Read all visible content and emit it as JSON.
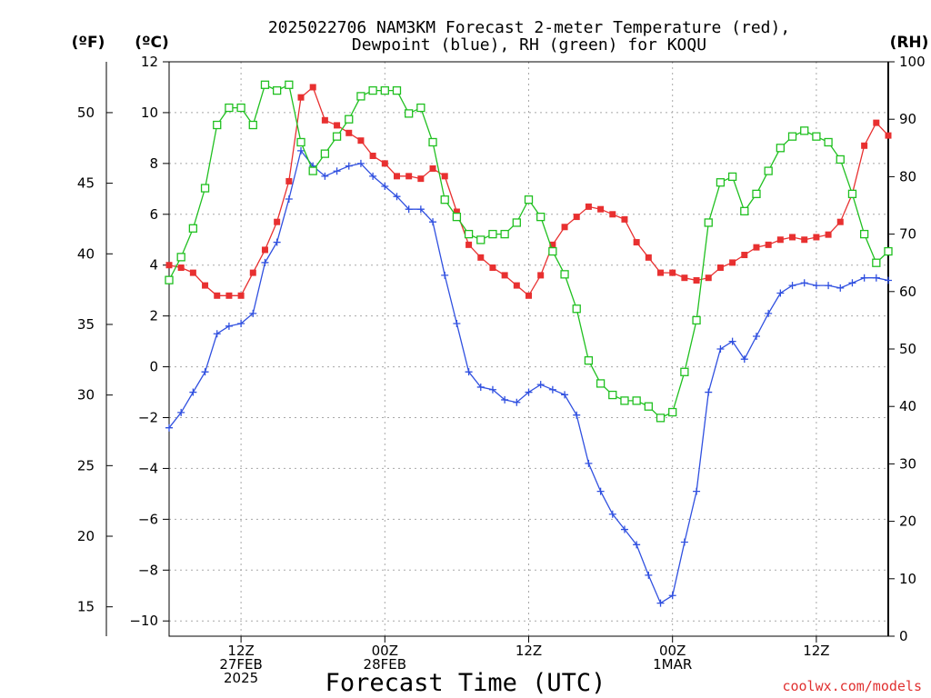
{
  "chart_data": {
    "type": "line",
    "title_line1": "2025022706 NAM3KM Forecast 2-meter Temperature (red),",
    "title_line2": "Dewpoint (blue), RH (green) for KOQU",
    "xlabel": "Forecast Time (UTC)",
    "y_left_outer_label": "(ºF)",
    "y_left_label": "(ºC)",
    "y_right_label": "(RH)",
    "credit": "coolwx.com/models",
    "x_hours_range": [
      0,
      60
    ],
    "ylim_c": [
      -10.6,
      12
    ],
    "ylim_rh": [
      0,
      100
    ],
    "c_ticks": [
      "12",
      "10",
      "8",
      "6",
      "4",
      "2",
      "0",
      "−2",
      "−4",
      "−6",
      "−8",
      "−10"
    ],
    "f_ticks": [
      "50",
      "45",
      "40",
      "35",
      "30",
      "25",
      "20",
      "15"
    ],
    "rh_ticks": [
      "100",
      "90",
      "80",
      "70",
      "60",
      "50",
      "40",
      "30",
      "20",
      "10",
      "0"
    ],
    "x_ticks": [
      {
        "hour": 6,
        "lines": [
          "12Z",
          "27FEB",
          "2025"
        ]
      },
      {
        "hour": 18,
        "lines": [
          "00Z",
          "28FEB"
        ]
      },
      {
        "hour": 30,
        "lines": [
          "12Z"
        ]
      },
      {
        "hour": 42,
        "lines": [
          "00Z",
          "1MAR"
        ]
      },
      {
        "hour": 54,
        "lines": [
          "12Z"
        ]
      }
    ],
    "series": [
      {
        "name": "2-meter Temperature",
        "color": "#e83030",
        "marker": "filled-square",
        "axis": "celsius",
        "values": [
          4.0,
          3.9,
          3.7,
          3.2,
          2.8,
          2.8,
          2.8,
          3.7,
          4.6,
          5.7,
          7.3,
          10.6,
          11.0,
          9.7,
          9.5,
          9.2,
          8.9,
          8.3,
          8.0,
          7.5,
          7.5,
          7.4,
          7.8,
          7.5,
          6.1,
          4.8,
          4.3,
          3.9,
          3.6,
          3.2,
          2.8,
          3.6,
          4.8,
          5.5,
          5.9,
          6.3,
          6.2,
          6.0,
          5.8,
          4.9,
          4.3,
          3.7,
          3.7,
          3.5,
          3.4,
          3.5,
          3.9,
          4.1,
          4.4,
          4.7,
          4.8,
          5.0,
          5.1,
          5.0,
          5.1,
          5.2,
          5.7,
          6.8,
          8.7,
          9.6,
          9.1
        ]
      },
      {
        "name": "Dewpoint",
        "color": "#3050e0",
        "marker": "plus",
        "axis": "celsius",
        "values": [
          -2.4,
          -1.8,
          -1.0,
          -0.2,
          1.3,
          1.6,
          1.7,
          2.1,
          4.1,
          4.9,
          6.6,
          8.5,
          7.9,
          7.5,
          7.7,
          7.9,
          8.0,
          7.5,
          7.1,
          6.7,
          6.2,
          6.2,
          5.7,
          3.6,
          1.7,
          -0.2,
          -0.8,
          -0.9,
          -1.3,
          -1.4,
          -1.0,
          -0.7,
          -0.9,
          -1.1,
          -1.9,
          -3.8,
          -4.9,
          -5.8,
          -6.4,
          -7.0,
          -8.2,
          -9.3,
          -9.0,
          -6.9,
          -4.9,
          -1.0,
          0.7,
          1.0,
          0.3,
          1.2,
          2.1,
          2.9,
          3.2,
          3.3,
          3.2,
          3.2,
          3.1,
          3.3,
          3.5,
          3.5,
          3.4
        ]
      },
      {
        "name": "RH",
        "color": "#20c020",
        "marker": "open-square",
        "axis": "rh",
        "values": [
          62,
          66,
          71,
          78,
          89,
          92,
          92,
          89,
          96,
          95,
          96,
          86,
          81,
          84,
          87,
          90,
          94,
          95,
          95,
          95,
          91,
          92,
          86,
          76,
          73,
          70,
          69,
          70,
          70,
          72,
          76,
          73,
          67,
          63,
          57,
          48,
          44,
          42,
          41,
          41,
          40,
          38,
          39,
          46,
          55,
          72,
          79,
          80,
          74,
          77,
          81,
          85,
          87,
          88,
          87,
          86,
          83,
          77,
          70,
          65,
          67
        ]
      }
    ]
  }
}
